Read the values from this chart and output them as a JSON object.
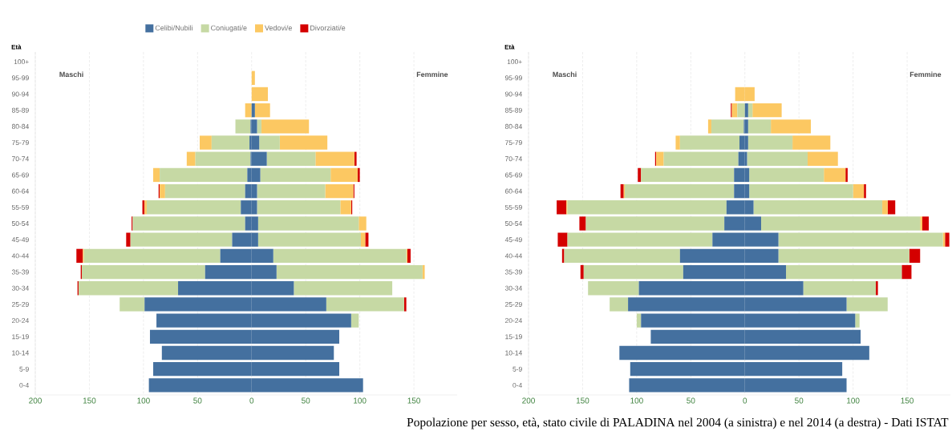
{
  "chart_data": [
    {
      "type": "bar",
      "orientation": "horizontal",
      "stacked": true,
      "ylabel": "Età",
      "legend": "top",
      "grid": "x",
      "categories": [
        "100+",
        "95-99",
        "90-94",
        "85-89",
        "80-84",
        "75-79",
        "70-74",
        "65-69",
        "60-64",
        "55-59",
        "50-54",
        "45-49",
        "40-44",
        "35-39",
        "30-34",
        "25-29",
        "20-24",
        "15-19",
        "10-14",
        "5-9",
        "0-4"
      ],
      "xlim": [
        -200,
        190
      ],
      "xticks": [
        {
          "value": -200,
          "label": "200"
        },
        {
          "value": -150,
          "label": "150"
        },
        {
          "value": -100,
          "label": "100"
        },
        {
          "value": -50,
          "label": "50"
        },
        0,
        50,
        100,
        150
      ],
      "annotations": [
        "Maschi",
        "Femmine",
        "Popolazione per sesso, età, stato civile di PALADINA nel 2004 (a sinistra) e nel 2014 (a destra) - Dati ISTAT"
      ],
      "series": [
        {
          "name": "Celibi/Nubili",
          "color": "#44709f",
          "values": [
            0,
            0,
            0,
            0,
            -1,
            -2,
            -1,
            -4,
            -6,
            -10,
            -6,
            -18,
            -29,
            -43,
            -68,
            -99,
            -88,
            -94,
            -83,
            -91,
            -95
          ]
        },
        {
          "name": "Coniugati/e",
          "color": "#c6d9a4",
          "values": [
            0,
            0,
            0,
            0,
            -14,
            -35,
            -51,
            -81,
            -74,
            -87,
            -104,
            -94,
            -126,
            -114,
            -92,
            -23,
            0,
            0,
            0,
            0,
            0
          ]
        },
        {
          "name": "Vedovi/e",
          "color": "#fcc862",
          "values": [
            0,
            0,
            0,
            -6,
            0,
            -11,
            -8,
            -6,
            -5,
            -2,
            0,
            0,
            -1,
            0,
            0,
            0,
            0,
            0,
            0,
            0,
            0
          ]
        },
        {
          "name": "Divorziati/e",
          "color": "#d40000",
          "values": [
            0,
            0,
            0,
            0,
            0,
            0,
            0,
            0,
            -1,
            -2,
            -1,
            -4,
            -6,
            -1,
            -1,
            0,
            0,
            0,
            0,
            0,
            0
          ]
        },
        {
          "color": "#44709f",
          "values": [
            0,
            0,
            0,
            3,
            5,
            7,
            14,
            8,
            5,
            5,
            6,
            6,
            20,
            23,
            39,
            69,
            92,
            81,
            76,
            81,
            103
          ]
        },
        {
          "color": "#c6d9a4",
          "values": [
            0,
            0,
            0,
            0,
            4,
            19,
            45,
            65,
            63,
            77,
            93,
            95,
            123,
            135,
            91,
            72,
            7,
            0,
            0,
            0,
            0
          ]
        },
        {
          "color": "#fcc862",
          "values": [
            0,
            3,
            15,
            14,
            44,
            44,
            36,
            25,
            26,
            10,
            7,
            4,
            1,
            2,
            0,
            0,
            0,
            0,
            0,
            0,
            0
          ]
        },
        {
          "color": "#d40000",
          "values": [
            0,
            0,
            0,
            0,
            0,
            0,
            2,
            2,
            1,
            1,
            0,
            3,
            3,
            0,
            0,
            2,
            0,
            0,
            0,
            0,
            0
          ]
        }
      ]
    },
    {
      "type": "bar",
      "orientation": "horizontal",
      "stacked": true,
      "ylabel": "Età",
      "grid": "x",
      "categories": [
        "100+",
        "95-99",
        "90-94",
        "85-89",
        "80-84",
        "75-79",
        "70-74",
        "65-69",
        "60-64",
        "55-59",
        "50-54",
        "45-49",
        "40-44",
        "35-39",
        "30-34",
        "25-29",
        "20-24",
        "15-19",
        "10-14",
        "5-9",
        "0-4"
      ],
      "xlim": [
        -200,
        190
      ],
      "xticks": [
        {
          "value": -200,
          "label": "200"
        },
        {
          "value": -150,
          "label": "150"
        },
        {
          "value": -100,
          "label": "100"
        },
        {
          "value": -50,
          "label": "50"
        },
        0,
        50,
        100,
        150
      ],
      "annotations": [
        "Maschi",
        "Femmine"
      ],
      "series": [
        {
          "color": "#44709f",
          "values": [
            0,
            0,
            0,
            0,
            -1,
            -5,
            -6,
            -10,
            -10,
            -17,
            -19,
            -30,
            -60,
            -57,
            -98,
            -108,
            -96,
            -87,
            -116,
            -106,
            -107
          ]
        },
        {
          "color": "#c6d9a4",
          "values": [
            0,
            0,
            0,
            -7,
            -30,
            -55,
            -69,
            -86,
            -101,
            -147,
            -128,
            -134,
            -107,
            -92,
            -47,
            -17,
            -4,
            0,
            0,
            0,
            0
          ]
        },
        {
          "color": "#fcc862",
          "values": [
            0,
            0,
            -9,
            -5,
            -3,
            -4,
            -7,
            0,
            -1,
            -1,
            0,
            0,
            0,
            0,
            0,
            0,
            0,
            0,
            0,
            0,
            0
          ]
        },
        {
          "color": "#d40000",
          "values": [
            0,
            0,
            0,
            -1,
            0,
            0,
            -1,
            -3,
            -3,
            -9,
            -6,
            -9,
            -2,
            -3,
            0,
            0,
            0,
            0,
            0,
            0,
            0
          ]
        },
        {
          "color": "#44709f",
          "values": [
            0,
            0,
            0,
            3,
            3,
            3,
            2,
            4,
            4,
            8,
            15,
            31,
            31,
            38,
            54,
            94,
            102,
            107,
            115,
            90,
            94
          ]
        },
        {
          "color": "#c6d9a4",
          "values": [
            0,
            0,
            0,
            4,
            21,
            41,
            56,
            69,
            96,
            119,
            147,
            152,
            121,
            107,
            67,
            38,
            4,
            0,
            0,
            0,
            0
          ]
        },
        {
          "color": "#fcc862",
          "values": [
            0,
            0,
            9,
            27,
            37,
            35,
            28,
            20,
            10,
            5,
            2,
            2,
            0,
            0,
            0,
            0,
            0,
            0,
            0,
            0,
            0
          ]
        },
        {
          "color": "#d40000",
          "values": [
            0,
            0,
            0,
            0,
            0,
            0,
            0,
            2,
            2,
            7,
            6,
            4,
            10,
            9,
            2,
            0,
            0,
            0,
            0,
            0,
            0
          ]
        }
      ]
    }
  ]
}
